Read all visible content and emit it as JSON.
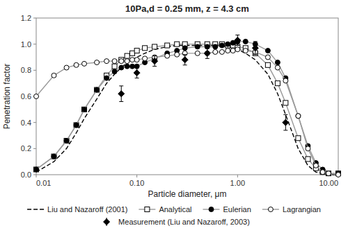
{
  "chart_data": {
    "type": "line",
    "title": "10Pa,d = 0.25 mm, z = 4.3 cm",
    "xlabel": "Particle diameter, μm",
    "ylabel": "Penetration factor",
    "log": "x",
    "grid": false,
    "legend": "bottom",
    "xlim": [
      0.01,
      10.0
    ],
    "ylim": [
      0.0,
      1.2
    ],
    "xticks": [
      0.01,
      {
        "value": 0.1,
        "label": "0.10"
      },
      {
        "value": 1.0,
        "label": "1.00"
      },
      {
        "value": 10.0,
        "label": "10.00"
      }
    ],
    "yticks": [
      {
        "value": 0.0,
        "label": "0.0"
      },
      0.2,
      0.4,
      0.6,
      0.8,
      {
        "value": 1.0,
        "label": "1.0"
      },
      1.2
    ],
    "series": [
      {
        "name": "Liu and Nazaroff (2001)",
        "type": "line",
        "color": "#000000",
        "line_style": "dashed",
        "marker": "none",
        "x": [
          0.01,
          0.015,
          0.02,
          0.025,
          0.03,
          0.04,
          0.05,
          0.06,
          0.07,
          0.08,
          0.09,
          0.1,
          0.12,
          0.15,
          0.2,
          0.25,
          0.3,
          0.4,
          0.5,
          0.6,
          0.7,
          0.8,
          0.9,
          1.0,
          1.2,
          1.5,
          2.0,
          2.5,
          3.0,
          4.0,
          5.0,
          6.0,
          7.0,
          8.0,
          10.0
        ],
        "values": [
          0.02,
          0.1,
          0.2,
          0.32,
          0.43,
          0.58,
          0.7,
          0.77,
          0.82,
          0.86,
          0.88,
          0.9,
          0.93,
          0.96,
          0.98,
          0.99,
          0.99,
          0.99,
          0.99,
          0.99,
          0.99,
          0.98,
          0.97,
          0.96,
          0.93,
          0.88,
          0.77,
          0.62,
          0.46,
          0.2,
          0.07,
          0.02,
          0.01,
          0.0,
          0.0
        ]
      },
      {
        "name": "Analytical",
        "type": "line",
        "color": "#999999",
        "line_style": "solid",
        "marker": "open-square",
        "x": [
          0.01,
          0.015,
          0.02,
          0.025,
          0.03,
          0.04,
          0.05,
          0.06,
          0.07,
          0.08,
          0.09,
          0.1,
          0.12,
          0.15,
          0.2,
          0.25,
          0.3,
          0.4,
          0.5,
          0.6,
          0.7,
          0.8,
          0.9,
          1.0,
          1.2,
          1.5,
          2.0,
          2.5,
          3.0,
          4.0,
          5.0,
          6.0,
          7.0,
          8.0,
          10.0
        ],
        "values": [
          0.04,
          0.14,
          0.26,
          0.38,
          0.5,
          0.65,
          0.76,
          0.83,
          0.88,
          0.91,
          0.93,
          0.95,
          0.97,
          0.98,
          0.99,
          1.0,
          1.0,
          1.0,
          1.0,
          1.0,
          1.0,
          0.99,
          0.99,
          0.98,
          0.97,
          0.93,
          0.84,
          0.7,
          0.55,
          0.28,
          0.12,
          0.05,
          0.02,
          0.01,
          0.01
        ]
      },
      {
        "name": "Eulerian",
        "type": "line",
        "color": "#999999",
        "line_style": "solid",
        "marker": "filled-circle",
        "x": [
          0.01,
          0.015,
          0.02,
          0.025,
          0.03,
          0.04,
          0.05,
          0.06,
          0.07,
          0.08,
          0.09,
          0.1,
          0.12,
          0.15,
          0.2,
          0.25,
          0.3,
          0.4,
          0.5,
          0.6,
          0.7,
          0.8,
          0.9,
          1.0,
          1.2,
          1.5,
          2.0,
          2.5,
          3.0,
          4.0,
          5.0,
          6.0,
          7.0,
          8.0,
          10.0
        ],
        "values": [
          0.04,
          0.14,
          0.26,
          0.38,
          0.5,
          0.65,
          0.74,
          0.79,
          0.82,
          0.83,
          0.83,
          0.83,
          0.86,
          0.89,
          0.93,
          0.95,
          0.97,
          0.98,
          0.98,
          0.98,
          0.99,
          1.0,
          1.01,
          1.02,
          1.02,
          1.0,
          0.95,
          0.86,
          0.74,
          0.45,
          0.22,
          0.09,
          0.04,
          0.01,
          0.01
        ]
      },
      {
        "name": "Lagrangian",
        "type": "line",
        "color": "#999999",
        "line_style": "solid",
        "marker": "open-circle",
        "x": [
          0.01,
          0.015,
          0.02,
          0.025,
          0.03,
          0.04,
          0.05,
          0.06,
          0.07,
          0.08,
          0.09,
          0.1,
          0.12,
          0.15,
          0.2,
          0.25,
          0.3,
          0.4,
          0.5,
          0.6,
          0.7,
          0.8,
          0.9,
          1.0,
          1.2,
          1.5,
          2.0,
          2.5,
          3.0,
          4.0,
          5.0,
          6.0,
          7.0,
          8.0,
          10.0
        ],
        "values": [
          0.6,
          0.76,
          0.82,
          0.84,
          0.85,
          0.86,
          0.87,
          0.87,
          0.87,
          0.87,
          0.88,
          0.88,
          0.89,
          0.9,
          0.91,
          0.92,
          0.93,
          0.93,
          0.93,
          0.94,
          0.94,
          0.95,
          0.95,
          0.96,
          0.95,
          0.94,
          0.9,
          0.82,
          0.72,
          0.45,
          0.2,
          0.07,
          0.02,
          0.01,
          0.0
        ]
      },
      {
        "name": "Measurement (Liu and Nazaroff, 2003)",
        "type": "scatter",
        "color": "#000000",
        "marker": "filled-diamond",
        "x": [
          0.07,
          0.1,
          0.15,
          0.3,
          0.5,
          1.0,
          1.5,
          3.0
        ],
        "values": [
          0.62,
          0.78,
          0.87,
          0.88,
          0.93,
          1.03,
          0.97,
          0.4
        ],
        "errors": [
          0.06,
          0.04,
          0.04,
          0.04,
          0.04,
          0.04,
          0.05,
          0.06
        ]
      }
    ]
  }
}
